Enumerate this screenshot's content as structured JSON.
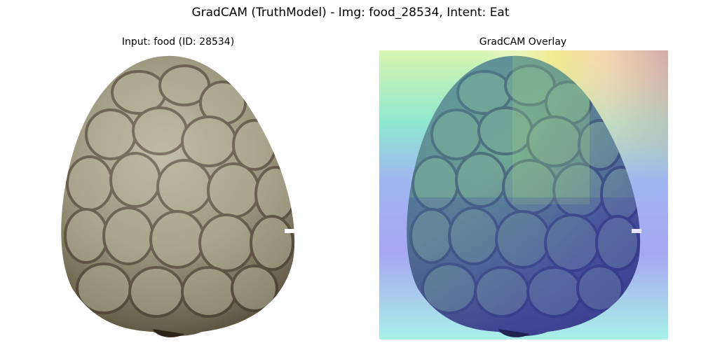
{
  "figure": {
    "title": "GradCAM (TruthModel) - Img: food_28534, Intent: Eat"
  },
  "panels": [
    {
      "title": "Input: food (ID: 28534)"
    },
    {
      "title": "GradCAM Overlay"
    }
  ],
  "colors": {
    "background": "#ffffff",
    "egg_base": "#7c7660",
    "egg_highlight": "#c9c6b2",
    "egg_shadow": "#3c3425",
    "vein": "#3a2a22",
    "heat_low": "#5555e0",
    "heat_mid": "#57d8a0",
    "heat_high": "#f0e07a",
    "heat_peak": "#d9a8a8"
  }
}
